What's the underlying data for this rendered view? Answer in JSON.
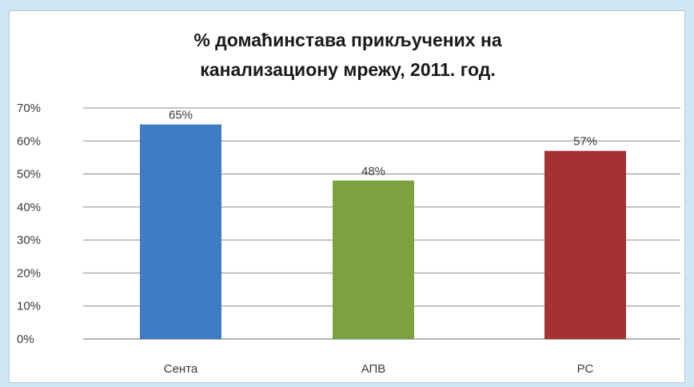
{
  "chart_data": {
    "type": "bar",
    "title_lines": [
      "% домаћинстава прикључених на",
      "канализациону мрежу, 2011. год."
    ],
    "categories": [
      "Сента",
      "АПВ",
      "РС"
    ],
    "values": [
      65,
      48,
      57
    ],
    "value_labels": [
      "65%",
      "48%",
      "57%"
    ],
    "bar_colors": [
      "#3f7cc6",
      "#7ba23f",
      "#a53232"
    ],
    "ylim": [
      0,
      70
    ],
    "y_ticks": [
      0,
      10,
      20,
      30,
      40,
      50,
      60,
      70
    ],
    "y_tick_labels": [
      "0%",
      "10%",
      "20%",
      "30%",
      "40%",
      "50%",
      "60%",
      "70%"
    ],
    "grid": true,
    "legend": "none"
  }
}
